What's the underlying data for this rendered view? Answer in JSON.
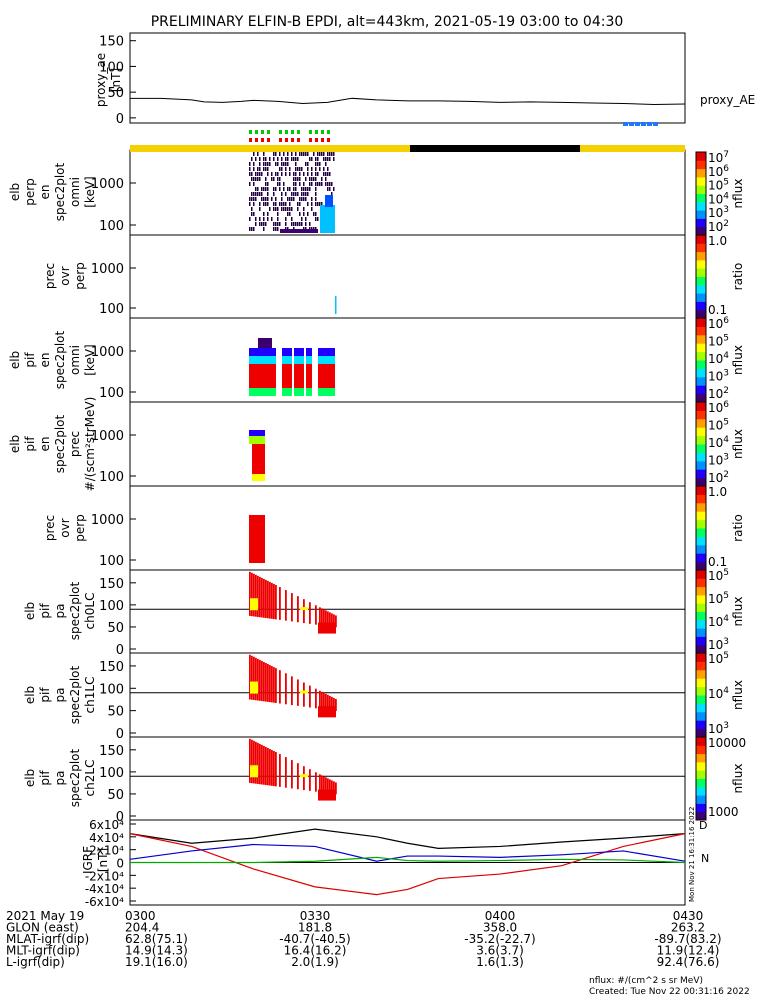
{
  "title": "PRELIMINARY ELFIN-B EPDI, alt=443km, 2021-05-19 03:00 to 04:30",
  "colors": {
    "bar_yellow": "#f5d000",
    "bar_black": "#000000",
    "bar_blue": "#1e78ff",
    "green": "#00cc00",
    "red": "#ee0000"
  },
  "chart_data": [
    {
      "type": "line",
      "panel": "proxy_ae",
      "ylabel": "proxy_ae\n[nT]",
      "series_label": "proxy_AE",
      "yticks": [
        0,
        50,
        100,
        150
      ],
      "ylim": [
        -10,
        165
      ],
      "series": [
        {
          "name": "proxy_AE",
          "x_min": [
            0,
            5,
            10,
            12,
            15,
            18,
            20,
            24,
            28,
            32,
            36,
            40,
            45,
            50,
            55,
            60,
            65,
            70,
            75,
            80,
            85,
            90
          ],
          "values": [
            38,
            38,
            35,
            31,
            30,
            32,
            34,
            32,
            28,
            30,
            38,
            35,
            33,
            33,
            32,
            30,
            31,
            30,
            29,
            28,
            26,
            27
          ]
        }
      ]
    },
    {
      "type": "heatmap",
      "panel": "elb_perp_en",
      "ylabel": "elb perp en spec2plot omni [keV]",
      "yticks": [
        "100",
        "1000"
      ],
      "cbar_label": "nflux",
      "cbar_ticks": [
        "10^2",
        "10^3",
        "10^4",
        "10^5",
        "10^6",
        "10^7"
      ]
    },
    {
      "type": "heatmap",
      "panel": "prec_ovr_perp_1",
      "ylabel": "prec ovr perp",
      "yticks": [
        "100",
        "1000"
      ],
      "cbar_label": "ratio",
      "cbar_ticks": [
        "0.1",
        "1.0"
      ]
    },
    {
      "type": "heatmap",
      "panel": "elb_pif_en_omni",
      "ylabel": "elb pif en spec2plot omni [keV]",
      "yticks": [
        "100",
        "1000"
      ],
      "cbar_label": "nflux",
      "cbar_ticks": [
        "10^2",
        "10^3",
        "10^4",
        "10^5",
        "10^6"
      ]
    },
    {
      "type": "heatmap",
      "panel": "elb_pif_en_prec",
      "ylabel": "elb pif en spec2plot prec #/(scm²strMeV)",
      "yticks": [
        "100",
        "1000"
      ],
      "cbar_label": "nflux",
      "cbar_ticks": [
        "10^2",
        "10^3",
        "10^4",
        "10^5",
        "10^6"
      ]
    },
    {
      "type": "heatmap",
      "panel": "prec_ovr_perp_2",
      "ylabel": "prec ovr perp",
      "yticks": [
        "100",
        "1000"
      ],
      "cbar_label": "ratio",
      "cbar_ticks": [
        "0.1",
        "1.0"
      ]
    },
    {
      "type": "heatmap",
      "panel": "pa_ch0",
      "ylabel": "elb pif pa spec2plot ch0LC",
      "yticks": [
        "0",
        "50",
        "100",
        "150"
      ],
      "cbar_label": "nflux",
      "cbar_ticks": [
        "10^3",
        "10^4",
        "10^5",
        "10^5"
      ]
    },
    {
      "type": "heatmap",
      "panel": "pa_ch1",
      "ylabel": "elb pif pa spec2plot ch1LC",
      "yticks": [
        "0",
        "50",
        "100",
        "150"
      ],
      "cbar_label": "nflux",
      "cbar_ticks": [
        "10^3",
        "10^4",
        "10^5"
      ]
    },
    {
      "type": "heatmap",
      "panel": "pa_ch2",
      "ylabel": "elb pif pa spec2plot ch2LC",
      "yticks": [
        "0",
        "50",
        "100",
        "150"
      ],
      "cbar_label": "nflux",
      "cbar_ticks": [
        "1000",
        "10000"
      ]
    },
    {
      "type": "line",
      "panel": "igrf",
      "ylabel": "IGRF [nT]",
      "yticks": [
        "-6x10⁴",
        "-4x10⁴",
        "-2x10⁴",
        "0",
        "2x10⁴",
        "4x10⁴",
        "6x10⁴"
      ],
      "ylim": [
        -60000,
        60000
      ],
      "x": [
        0,
        10,
        20,
        30,
        40,
        45,
        50,
        60,
        70,
        80,
        90
      ],
      "series": [
        {
          "name": "black",
          "color": "#000000",
          "values": [
            45000,
            30000,
            38000,
            52000,
            40000,
            30000,
            22000,
            25000,
            32000,
            38000,
            45000
          ]
        },
        {
          "name": "red",
          "color": "#dd0000",
          "values": [
            45000,
            25000,
            -10000,
            -38000,
            -50000,
            -42000,
            -25000,
            -18000,
            -5000,
            25000,
            45000
          ]
        },
        {
          "name": "blue",
          "color": "#0000cc",
          "values": [
            5000,
            18000,
            28000,
            25000,
            2000,
            10000,
            10000,
            8000,
            12000,
            18000,
            2000
          ]
        },
        {
          "name": "green",
          "color": "#00aa00",
          "values": [
            0,
            0,
            0,
            2000,
            8000,
            3000,
            2000,
            3000,
            5000,
            4000,
            0
          ]
        }
      ],
      "legend_letters": [
        "D",
        "N"
      ]
    }
  ],
  "footer": {
    "rows": [
      {
        "label": "2021 May 19",
        "v": [
          "0300",
          "0330",
          "0400",
          "0430"
        ]
      },
      {
        "label": "GLON (east)",
        "v": [
          "204.4",
          "181.8",
          "358.0",
          "263.2"
        ]
      },
      {
        "label": "MLAT-igrf(dip)",
        "v": [
          "62.8(75.1)",
          "-40.7(-40.5)",
          "-35.2(-22.7)",
          "-89.7(83.2)"
        ]
      },
      {
        "label": "MLT-igrf(dip)",
        "v": [
          "14.9(14.3)",
          "16.4(16.2)",
          "3.6(3.7)",
          "11.9(12.4)"
        ]
      },
      {
        "label": "L-igrf(dip)",
        "v": [
          "19.1(16.0)",
          "2.0(1.9)",
          "1.6(1.3)",
          "92.4(76.6)"
        ]
      }
    ],
    "note1": "nflux: #/(cm^2 s sr MeV)",
    "note2": "Created: Tue Nov 22 00:31:16 2022",
    "side_stamp": "Mon Nov 21 16:31:16 2022"
  }
}
